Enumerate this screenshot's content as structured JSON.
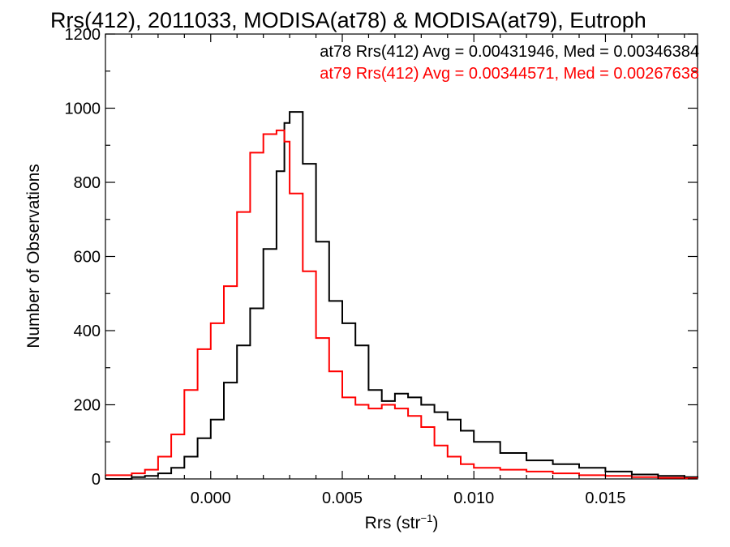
{
  "chart_data": {
    "type": "line",
    "title": "Rrs(412), 2011033, MODISA(at78) & MODISA(at79), Eutroph",
    "xlabel": {
      "base": "Rrs (str",
      "sup": "−1",
      "end": ")"
    },
    "ylabel": "Number of Observations",
    "xlim": [
      -0.004,
      0.0185
    ],
    "ylim": [
      0,
      1200
    ],
    "x_ticks": [
      {
        "value": 0.0,
        "label": "0.000"
      },
      {
        "value": 0.005,
        "label": "0.005"
      },
      {
        "value": 0.01,
        "label": "0.010"
      },
      {
        "value": 0.015,
        "label": "0.015"
      }
    ],
    "y_ticks": [
      {
        "value": 0,
        "label": "0"
      },
      {
        "value": 200,
        "label": "200"
      },
      {
        "value": 400,
        "label": "400"
      },
      {
        "value": 600,
        "label": "600"
      },
      {
        "value": 800,
        "label": "800"
      },
      {
        "value": 1000,
        "label": "1000"
      },
      {
        "value": 1200,
        "label": "1200"
      }
    ],
    "legend": {
      "placement": "top-right",
      "entries": [
        {
          "text": "at78 Rrs(412) Avg = 0.00431946, Med = 0.00346384",
          "color": "#000000"
        },
        {
          "text": "at79 Rrs(412) Avg = 0.00344571, Med = 0.00267638",
          "color": "#ff0000"
        }
      ]
    },
    "series": [
      {
        "color": "#000000",
        "style": "step",
        "x": [
          -0.004,
          -0.003,
          -0.0025,
          -0.002,
          -0.0015,
          -0.001,
          -0.0005,
          0.0,
          0.0005,
          0.001,
          0.0015,
          0.002,
          0.0025,
          0.0028,
          0.003,
          0.0035,
          0.004,
          0.0045,
          0.005,
          0.0055,
          0.006,
          0.0065,
          0.007,
          0.0075,
          0.008,
          0.0085,
          0.009,
          0.0095,
          0.01,
          0.011,
          0.012,
          0.013,
          0.014,
          0.015,
          0.016,
          0.017,
          0.018,
          0.0185
        ],
        "y": [
          0,
          5,
          8,
          15,
          30,
          60,
          110,
          160,
          260,
          360,
          460,
          620,
          830,
          960,
          990,
          850,
          640,
          480,
          420,
          360,
          240,
          210,
          230,
          220,
          200,
          180,
          160,
          130,
          100,
          70,
          50,
          40,
          30,
          20,
          12,
          8,
          5,
          3
        ]
      },
      {
        "color": "#ff0000",
        "style": "step",
        "x": [
          -0.004,
          -0.003,
          -0.0025,
          -0.002,
          -0.0015,
          -0.001,
          -0.0005,
          0.0,
          0.0005,
          0.001,
          0.0015,
          0.002,
          0.0025,
          0.0028,
          0.003,
          0.0035,
          0.004,
          0.0045,
          0.005,
          0.0055,
          0.006,
          0.0065,
          0.007,
          0.0075,
          0.008,
          0.0085,
          0.009,
          0.0095,
          0.01,
          0.011,
          0.012,
          0.013,
          0.014,
          0.015,
          0.016,
          0.017,
          0.018,
          0.0185
        ],
        "y": [
          10,
          15,
          25,
          60,
          120,
          240,
          350,
          420,
          520,
          720,
          880,
          930,
          940,
          910,
          770,
          560,
          380,
          290,
          220,
          200,
          190,
          200,
          190,
          170,
          140,
          90,
          60,
          40,
          30,
          25,
          20,
          15,
          10,
          8,
          5,
          3,
          2,
          2
        ]
      }
    ]
  }
}
